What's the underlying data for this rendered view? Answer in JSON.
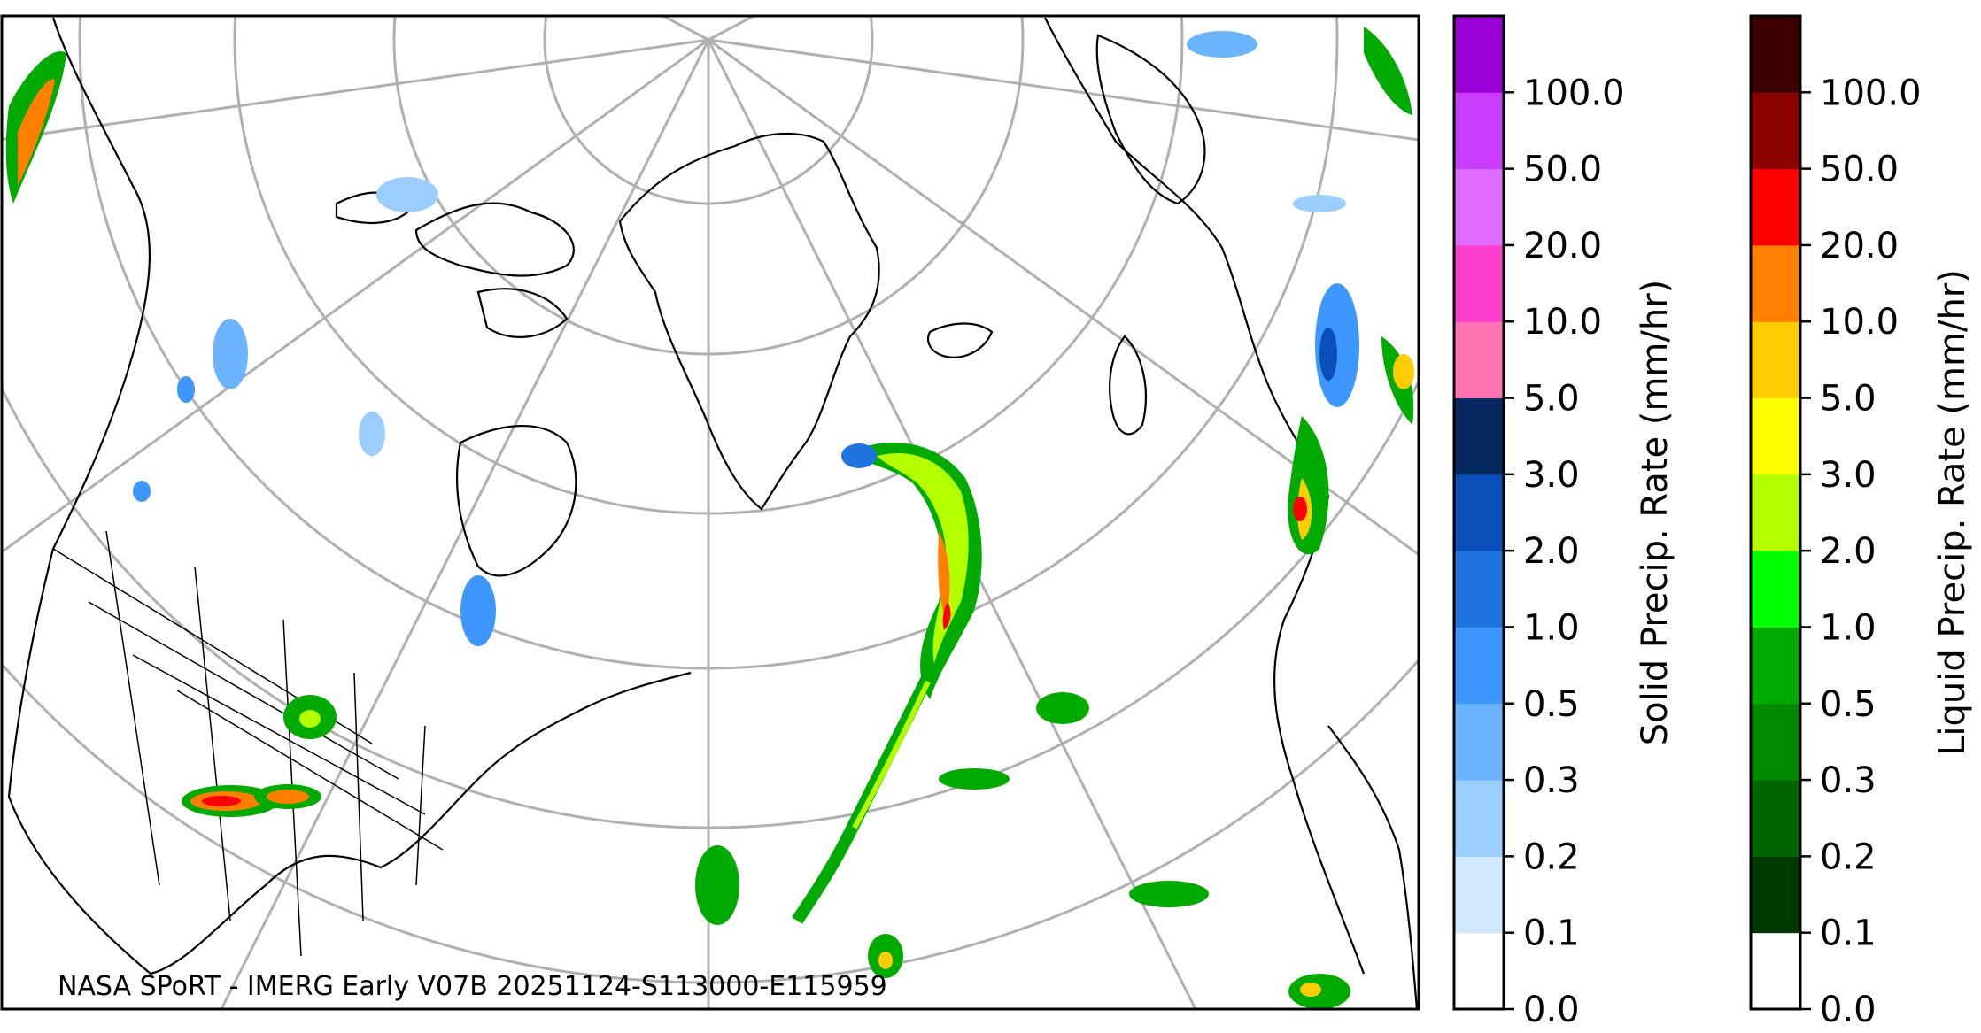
{
  "map": {
    "credit": "NASA SPoRT - IMERG Early V07B 20251124-S113000-E115959",
    "graticule_color": "#b0b0b0",
    "coastline_color": "#000000"
  },
  "colorbars": [
    {
      "label": "Solid Precip. Rate (mm/hr)",
      "ticks": [
        "0.0",
        "0.1",
        "0.2",
        "0.3",
        "0.5",
        "1.0",
        "2.0",
        "3.0",
        "5.0",
        "10.0",
        "20.0",
        "50.0",
        "100.0"
      ],
      "colors": [
        "#ffffff",
        "#cfe7ff",
        "#9ccdff",
        "#6db4ff",
        "#3d97ff",
        "#1f74e0",
        "#0a4fb8",
        "#05285e",
        "#ff73b3",
        "#ff3dcc",
        "#e06bff",
        "#c83dff",
        "#9b00d6"
      ]
    },
    {
      "label": "Liquid Precip. Rate (mm/hr)",
      "ticks": [
        "0.0",
        "0.1",
        "0.2",
        "0.3",
        "0.5",
        "1.0",
        "2.0",
        "3.0",
        "5.0",
        "10.0",
        "20.0",
        "50.0",
        "100.0"
      ],
      "colors": [
        "#ffffff",
        "#003a00",
        "#006600",
        "#008a00",
        "#00aa00",
        "#00ff00",
        "#b3ff00",
        "#ffff00",
        "#ffcc00",
        "#ff7f00",
        "#ff0000",
        "#8b0000",
        "#3d0000"
      ]
    }
  ]
}
